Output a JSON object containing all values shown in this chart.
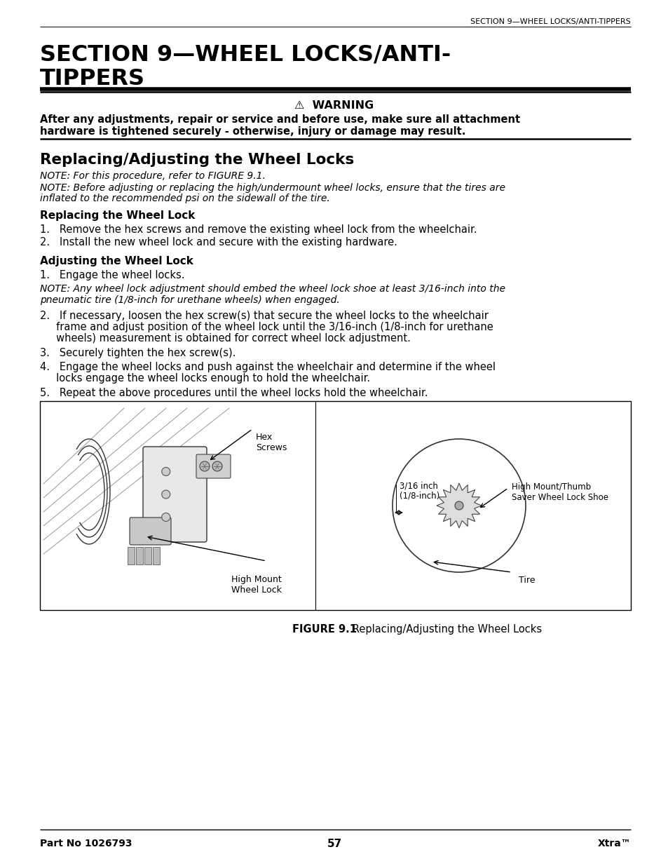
{
  "bg_color": "#ffffff",
  "header_text": "SECTION 9—WHEEL LOCKS/ANTI-TIPPERS",
  "big_title_line1": "SECTION 9—WHEEL LOCKS/ANTI-",
  "big_title_line2": "TIPPERS",
  "warning_symbol": "⚠",
  "warning_title": "WARNING",
  "warning_body1": "After any adjustments, repair or service and before use, make sure all attachment",
  "warning_body2": "hardware is tightened securely - otherwise, injury or damage may result.",
  "section_title": "Replacing/Adjusting the Wheel Locks",
  "note1": "NOTE: For this procedure, refer to FIGURE 9.1.",
  "note2a": "NOTE: Before adjusting or replacing the high/undermount wheel locks, ensure that the tires are",
  "note2b": "inflated to the recommended psi on the sidewall of the tire.",
  "subsection1": "Replacing the Wheel Lock",
  "step1_1": "1.   Remove the hex screws and remove the existing wheel lock from the wheelchair.",
  "step1_2": "2.   Install the new wheel lock and secure with the existing hardware.",
  "subsection2": "Adjusting the Wheel Lock",
  "step2_1": "1.   Engage the wheel locks.",
  "note3a": "NOTE: Any wheel lock adjustment should embed the wheel lock shoe at least 3/16-inch into the",
  "note3b": "pneumatic tire (1/8-inch for urethane wheels) when engaged.",
  "step2_2a": "2.   If necessary, loosen the hex screw(s) that secure the wheel locks to the wheelchair",
  "step2_2b": "     frame and adjust position of the wheel lock until the 3/16-inch (1/8-inch for urethane",
  "step2_2c": "     wheels) measurement is obtained for correct wheel lock adjustment.",
  "step2_3": "3.   Securely tighten the hex screw(s).",
  "step2_4a": "4.   Engage the wheel locks and push against the wheelchair and determine if the wheel",
  "step2_4b": "     locks engage the wheel locks enough to hold the wheelchair.",
  "step2_5": "5.   Repeat the above procedures until the wheel locks hold the wheelchair.",
  "fig_caption_bold": "FIGURE 9.1",
  "fig_caption_regular": "   Replacing/Adjusting the Wheel Locks",
  "label_hex_screws": "Hex\nScrews",
  "label_high_mount": "High Mount\nWheel Lock",
  "label_316": "3/16 inch\n(1/8-inch)",
  "label_thumb_saver": "High Mount/Thumb\nSaver Wheel Lock Shoe",
  "label_tire": "Tire",
  "footer_left": "Part No 1026793",
  "footer_center": "57",
  "footer_right": "Xtra™"
}
